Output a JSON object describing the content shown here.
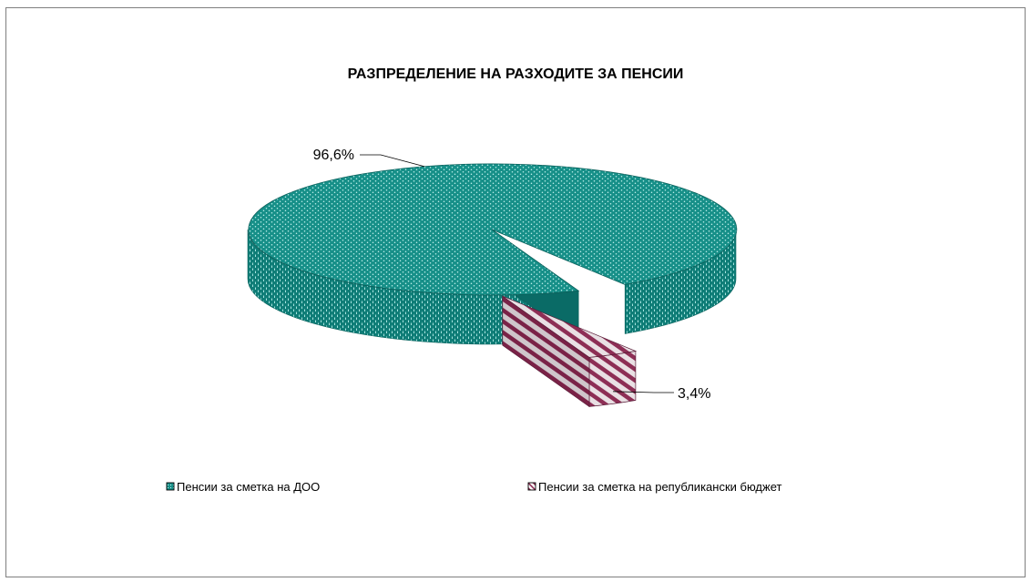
{
  "chart_data": {
    "type": "pie",
    "title": "РАЗПРЕДЕЛЕНИЕ НА РАЗХОДИТЕ ЗА ПЕНСИИ",
    "categories": [
      "Пенсии за сметка на ДОО",
      "Пенсии за сметка на републикански бюджет"
    ],
    "values": [
      96.6,
      3.4
    ],
    "data_labels": [
      "96,6%",
      "3,4%"
    ],
    "legend_position": "bottom",
    "style": "3d-exploded",
    "colors": [
      "#1f9c94",
      "#9b3a5f"
    ]
  }
}
